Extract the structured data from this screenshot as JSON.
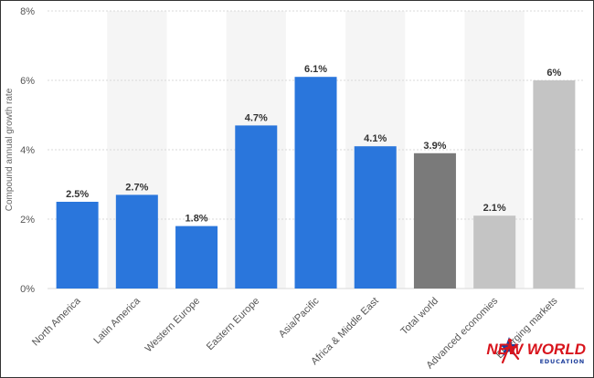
{
  "chart_data": {
    "type": "bar",
    "ylabel": "Compound annual growth rate",
    "ylim": [
      0,
      8
    ],
    "yticks": [
      "0%",
      "2%",
      "4%",
      "6%",
      "8%"
    ],
    "grid": true,
    "categories": [
      "North America",
      "Latin America",
      "Western Europe",
      "Eastern Europe",
      "Asia/Pacific",
      "Africa & Middle East",
      "Total world",
      "Advanced economies",
      "Emerging markets"
    ],
    "values": [
      2.5,
      2.7,
      1.8,
      4.7,
      6.1,
      4.1,
      3.9,
      2.1,
      6.0
    ],
    "data_labels": [
      "2.5%",
      "2.7%",
      "1.8%",
      "4.7%",
      "6.1%",
      "4.1%",
      "3.9%",
      "2.1%",
      "6%"
    ],
    "bar_colors": [
      "#2a76dc",
      "#2a76dc",
      "#2a76dc",
      "#2a76dc",
      "#2a76dc",
      "#2a76dc",
      "#7a7a7a",
      "#c4c4c4",
      "#c4c4c4"
    ],
    "band_color": "#f5f5f5",
    "grid_color": "#d9d9d9"
  },
  "logo": {
    "main": "NEW WORLD",
    "sub": "EDUCATION",
    "colors": {
      "red": "#d8141c",
      "blue": "#1e3f9c"
    }
  }
}
